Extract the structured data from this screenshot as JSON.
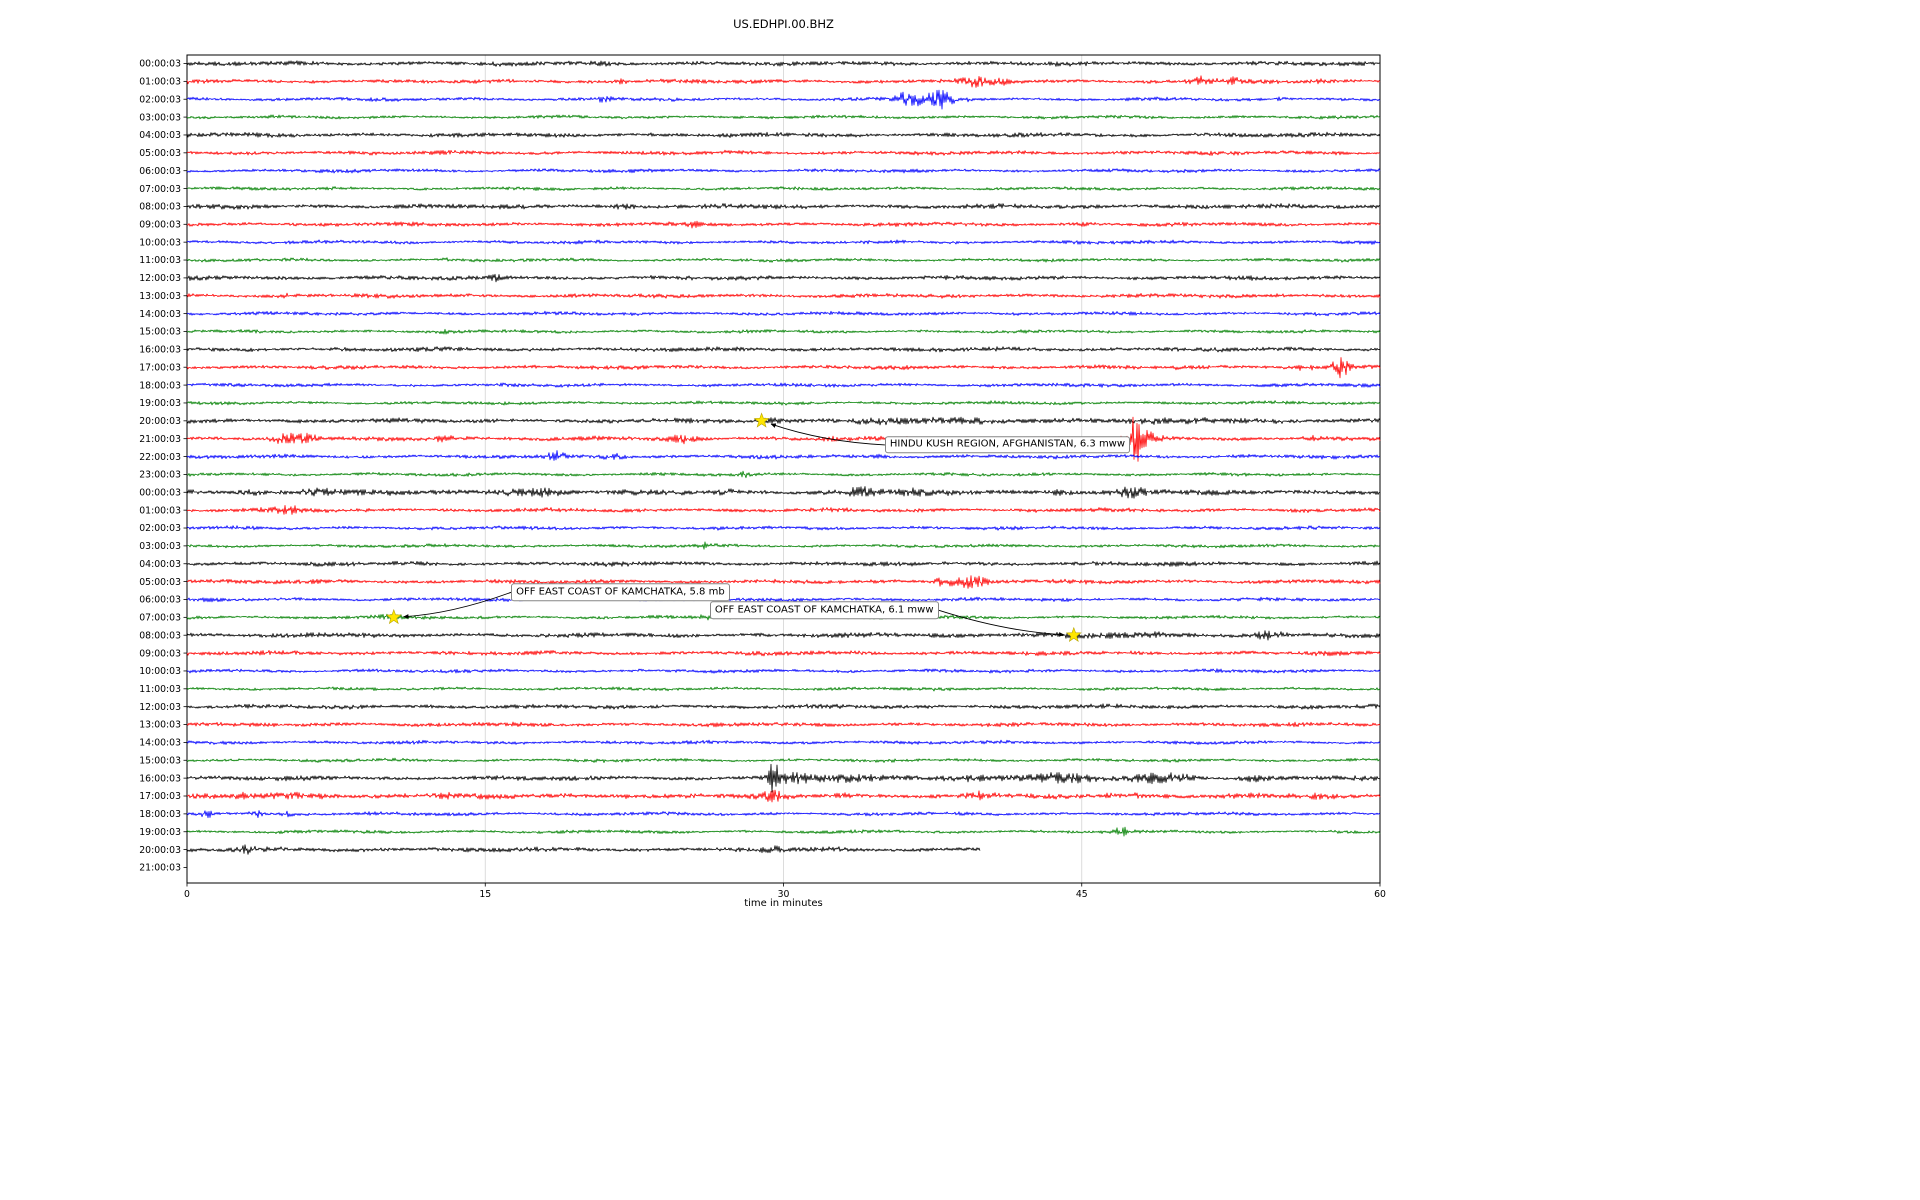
{
  "chart_data": {
    "type": "line",
    "subtype": "helicorder-seismogram",
    "title": "US.EDHPI.00.BHZ",
    "xlabel": "time in minutes",
    "xlim": [
      0,
      60
    ],
    "x_ticks": [
      0,
      15,
      30,
      45,
      60
    ],
    "x_tick_labels": [
      "0",
      "15",
      "30",
      "45",
      "60"
    ],
    "grid": "vertical gridlines at 15, 30, 45",
    "color_cycle": [
      "#000000",
      "#ff0000",
      "#0000ff",
      "#008000"
    ],
    "marker": {
      "shape": "star",
      "color": "#ffe600"
    },
    "rows": [
      {
        "label": "00:00:03",
        "color": "#000000",
        "base": 1.6,
        "bursts": [
          [
            21,
            0.8,
            0.5
          ],
          [
            36,
            0.6,
            0.5
          ]
        ]
      },
      {
        "label": "01:00:03",
        "color": "#ff0000",
        "base": 1.5,
        "bursts": [
          [
            22,
            2.2,
            0.3
          ],
          [
            39.5,
            3.2,
            0.4
          ],
          [
            40.8,
            2.6,
            0.35
          ],
          [
            51,
            3.2,
            0.4
          ],
          [
            52.5,
            1.8,
            0.3
          ],
          [
            57,
            1.2,
            0.3
          ]
        ]
      },
      {
        "label": "02:00:03",
        "color": "#0000ff",
        "base": 1.3,
        "bursts": [
          [
            21,
            2.2,
            0.3
          ],
          [
            36.3,
            5.5,
            0.5
          ],
          [
            38,
            6,
            0.55
          ],
          [
            55,
            1.6,
            0.3
          ]
        ]
      },
      {
        "label": "03:00:03",
        "color": "#008000",
        "base": 1.2,
        "bursts": []
      },
      {
        "label": "04:00:03",
        "color": "#000000",
        "base": 1.6,
        "bursts": []
      },
      {
        "label": "05:00:03",
        "color": "#ff0000",
        "base": 1.5,
        "bursts": [
          [
            58,
            1.4,
            0.3
          ]
        ]
      },
      {
        "label": "06:00:03",
        "color": "#0000ff",
        "base": 1.3,
        "bursts": []
      },
      {
        "label": "07:00:03",
        "color": "#008000",
        "base": 1.2,
        "bursts": []
      },
      {
        "label": "08:00:03",
        "color": "#000000",
        "base": 1.7,
        "bursts": [
          [
            22,
            1.2,
            0.4
          ]
        ]
      },
      {
        "label": "09:00:03",
        "color": "#ff0000",
        "base": 1.5,
        "bursts": [
          [
            25.5,
            1.4,
            0.2
          ],
          [
            45,
            1.3,
            0.2
          ]
        ]
      },
      {
        "label": "10:00:03",
        "color": "#0000ff",
        "base": 1.3,
        "bursts": []
      },
      {
        "label": "11:00:03",
        "color": "#008000",
        "base": 1.2,
        "bursts": [
          [
            13,
            1,
            0.15
          ]
        ]
      },
      {
        "label": "12:00:03",
        "color": "#000000",
        "base": 1.6,
        "bursts": [
          [
            15.5,
            1.8,
            0.2
          ]
        ]
      },
      {
        "label": "13:00:03",
        "color": "#ff0000",
        "base": 1.5,
        "bursts": [
          [
            5,
            1,
            0.3
          ],
          [
            55,
            1,
            0.3
          ]
        ]
      },
      {
        "label": "14:00:03",
        "color": "#0000ff",
        "base": 1.3,
        "bursts": []
      },
      {
        "label": "15:00:03",
        "color": "#008000",
        "base": 1.2,
        "bursts": [
          [
            12.8,
            1.4,
            0.15
          ]
        ]
      },
      {
        "label": "16:00:03",
        "color": "#000000",
        "base": 1.6,
        "bursts": []
      },
      {
        "label": "17:00:03",
        "color": "#ff0000",
        "base": 1.5,
        "bursts": [
          [
            56.2,
            2.5,
            0.3
          ],
          [
            58,
            11,
            0.3
          ]
        ]
      },
      {
        "label": "18:00:03",
        "color": "#0000ff",
        "base": 1.3,
        "bursts": []
      },
      {
        "label": "19:00:03",
        "color": "#008000",
        "base": 1.2,
        "bursts": []
      },
      {
        "label": "20:00:03",
        "color": "#000000",
        "base": 1.7,
        "bursts": [
          [
            29.3,
            1.2,
            0.6
          ],
          [
            34,
            0.8,
            3
          ],
          [
            46,
            0.8,
            8
          ]
        ]
      },
      {
        "label": "21:00:03",
        "color": "#ff0000",
        "base": 1.6,
        "bursts": [
          [
            5,
            3,
            0.5
          ],
          [
            6.2,
            1.8,
            0.4
          ],
          [
            13,
            3.2,
            0.5
          ],
          [
            25,
            2.8,
            0.5
          ],
          [
            32.5,
            1.8,
            0.3
          ],
          [
            47.7,
            15,
            0.15
          ],
          [
            48,
            4.5,
            0.5
          ],
          [
            56.5,
            1.8,
            0.3
          ]
        ]
      },
      {
        "label": "22:00:03",
        "color": "#0000ff",
        "base": 1.4,
        "bursts": [
          [
            18.5,
            2.8,
            0.3
          ],
          [
            21.5,
            3.2,
            0.4
          ],
          [
            35,
            1.2,
            0.3
          ]
        ]
      },
      {
        "label": "23:00:03",
        "color": "#008000",
        "base": 1.2,
        "bursts": [
          [
            28,
            1.2,
            0.2
          ]
        ]
      },
      {
        "label": "00:00:03",
        "color": "#000000",
        "base": 2.0,
        "bursts": [
          [
            3,
            1.8,
            0.4
          ],
          [
            6.5,
            2.6,
            0.5
          ],
          [
            16.5,
            3,
            0.8
          ],
          [
            18,
            2.2,
            0.5
          ],
          [
            27,
            1.4,
            0.3
          ],
          [
            34,
            3,
            0.5
          ],
          [
            36.5,
            1.8,
            0.4
          ],
          [
            44,
            1.8,
            0.4
          ],
          [
            47.5,
            2.6,
            0.5
          ]
        ]
      },
      {
        "label": "01:00:03",
        "color": "#ff0000",
        "base": 1.5,
        "bursts": [
          [
            5,
            2.8,
            0.5
          ]
        ]
      },
      {
        "label": "02:00:03",
        "color": "#0000ff",
        "base": 1.3,
        "bursts": []
      },
      {
        "label": "03:00:03",
        "color": "#008000",
        "base": 1.2,
        "bursts": [
          [
            26,
            2.2,
            0.15
          ]
        ]
      },
      {
        "label": "04:00:03",
        "color": "#000000",
        "base": 1.6,
        "bursts": []
      },
      {
        "label": "05:00:03",
        "color": "#ff0000",
        "base": 1.5,
        "bursts": [
          [
            38,
            5,
            0.4
          ],
          [
            39.4,
            6,
            0.5
          ]
        ]
      },
      {
        "label": "06:00:03",
        "color": "#0000ff",
        "base": 1.3,
        "bursts": []
      },
      {
        "label": "07:00:03",
        "color": "#008000",
        "base": 1.2,
        "bursts": [
          [
            10.5,
            0.7,
            2
          ],
          [
            26,
            1.2,
            0.2
          ]
        ]
      },
      {
        "label": "08:00:03",
        "color": "#000000",
        "base": 1.7,
        "bursts": [
          [
            45,
            0.7,
            4
          ],
          [
            54.5,
            4.5,
            0.5
          ]
        ]
      },
      {
        "label": "09:00:03",
        "color": "#ff0000",
        "base": 1.6,
        "bursts": []
      },
      {
        "label": "10:00:03",
        "color": "#0000ff",
        "base": 1.3,
        "bursts": []
      },
      {
        "label": "11:00:03",
        "color": "#008000",
        "base": 1.2,
        "bursts": []
      },
      {
        "label": "12:00:03",
        "color": "#000000",
        "base": 1.6,
        "bursts": []
      },
      {
        "label": "13:00:03",
        "color": "#ff0000",
        "base": 1.5,
        "bursts": []
      },
      {
        "label": "14:00:03",
        "color": "#0000ff",
        "base": 1.3,
        "bursts": []
      },
      {
        "label": "15:00:03",
        "color": "#008000",
        "base": 1.2,
        "bursts": []
      },
      {
        "label": "16:00:03",
        "color": "#000000",
        "base": 1.7,
        "bursts": [
          [
            29.5,
            12,
            0.15
          ],
          [
            30.5,
            2.6,
            0.6
          ],
          [
            33,
            1.8,
            1
          ],
          [
            40,
            1.6,
            3
          ],
          [
            44,
            1.5,
            1
          ],
          [
            48.5,
            3,
            0.8
          ],
          [
            50,
            2.2,
            0.6
          ],
          [
            53.5,
            1.5,
            0.5
          ]
        ]
      },
      {
        "label": "17:00:03",
        "color": "#ff0000",
        "base": 1.9,
        "bursts": [
          [
            3,
            1.8,
            0.5
          ],
          [
            5,
            1.8,
            0.5
          ],
          [
            7,
            1.8,
            0.4
          ],
          [
            13,
            1.4,
            0.3
          ],
          [
            22,
            1.4,
            0.3
          ],
          [
            29.5,
            2.6,
            0.4
          ],
          [
            33,
            1.4,
            0.3
          ],
          [
            40,
            1.8,
            0.4
          ],
          [
            46.5,
            4.5,
            0.2
          ],
          [
            47.5,
            1.8,
            0.3
          ],
          [
            57,
            1.4,
            0.3
          ]
        ]
      },
      {
        "label": "18:00:03",
        "color": "#0000ff",
        "base": 1.3,
        "bursts": [
          [
            1,
            2.8,
            0.2
          ],
          [
            3.5,
            3.6,
            0.25
          ],
          [
            5,
            1.8,
            0.2
          ]
        ]
      },
      {
        "label": "19:00:03",
        "color": "#008000",
        "base": 1.2,
        "bursts": [
          [
            47,
            3.6,
            0.2
          ]
        ]
      },
      {
        "label": "20:00:03",
        "color": "#000000",
        "base": 1.7,
        "coverage": 0.665,
        "bursts": [
          [
            3,
            1.8,
            0.3
          ],
          [
            29.5,
            1.8,
            0.3
          ]
        ]
      },
      {
        "label": "21:00:03",
        "color": "#000000",
        "base": 0,
        "coverage": 0,
        "bursts": []
      }
    ],
    "annotations": [
      {
        "text": "HINDU KUSH REGION, AFGHANISTAN, 6.3 mww",
        "marker_row": 20,
        "marker_x_min": 28.9,
        "box_row": 21.35,
        "box_x_min": 35.1,
        "arrow_side": "left"
      },
      {
        "text": "OFF EAST COAST OF KAMCHATKA, 5.8 mb",
        "marker_row": 31,
        "marker_x_min": 10.4,
        "box_row": 29.6,
        "box_x_min": 16.3,
        "arrow_side": "left"
      },
      {
        "text": "OFF EAST COAST OF KAMCHATKA, 6.1 mww",
        "marker_row": 32,
        "marker_x_min": 44.6,
        "box_row": 30.6,
        "box_x_min": 26.3,
        "arrow_side": "right"
      }
    ]
  }
}
